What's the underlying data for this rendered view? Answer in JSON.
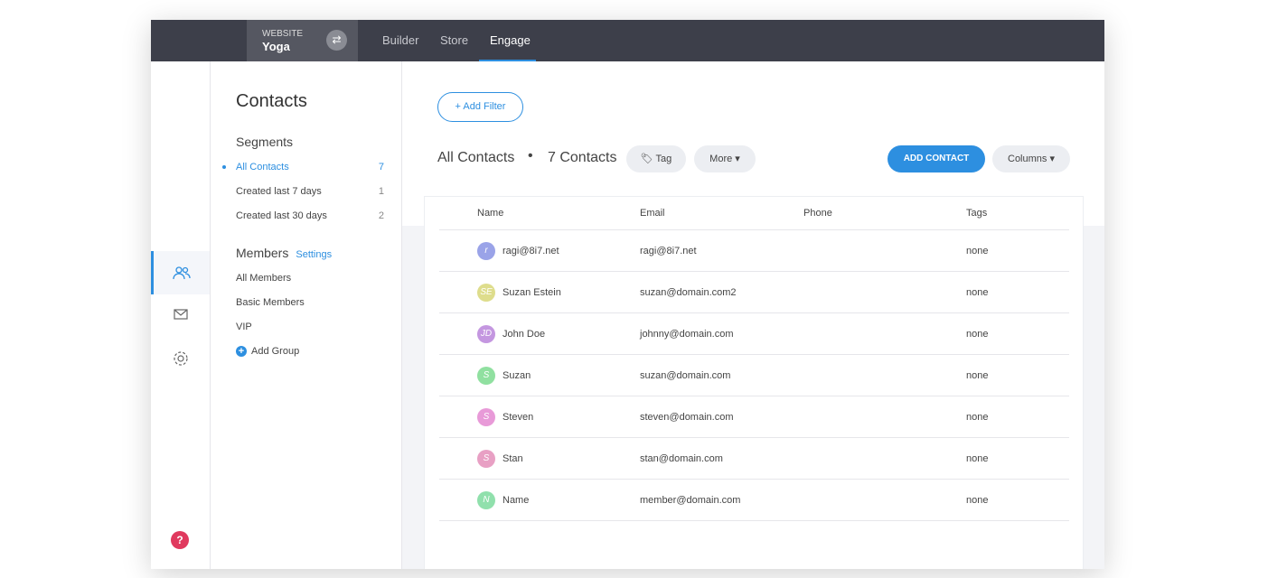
{
  "topbar": {
    "website_label": "WEBSITE",
    "website_name": "Yoga",
    "nav": [
      "Builder",
      "Store",
      "Engage"
    ],
    "active_nav": "Engage"
  },
  "sidebar": {
    "title": "Contacts",
    "segments_heading": "Segments",
    "segments": [
      {
        "label": "All Contacts",
        "count": "7",
        "active": true
      },
      {
        "label": "Created last 7 days",
        "count": "1"
      },
      {
        "label": "Created last 30 days",
        "count": "2"
      }
    ],
    "members_heading": "Members",
    "settings_link": "Settings",
    "members": [
      "All Members",
      "Basic Members",
      "VIP"
    ],
    "add_group": "Add Group"
  },
  "rail": {
    "icons": [
      "contacts-icon",
      "mail-icon",
      "gear-icon"
    ],
    "help": "?"
  },
  "main": {
    "add_filter": "Add Filter",
    "heading": "All Contacts",
    "count_label": "7 Contacts",
    "tag_button": "Tag",
    "more_button": "More",
    "add_contact": "ADD CONTACT",
    "columns_button": "Columns",
    "columns": [
      "Name",
      "Email",
      "Phone",
      "Tags"
    ],
    "rows": [
      {
        "initials": "r",
        "color": "#9aa3e8",
        "name": "ragi@8i7.net",
        "email": "ragi@8i7.net",
        "phone": "",
        "tags": "none"
      },
      {
        "initials": "SE",
        "color": "#dedd8c",
        "name": "Suzan Estein",
        "email": "suzan@domain.com2",
        "phone": "",
        "tags": "none"
      },
      {
        "initials": "JD",
        "color": "#c497e0",
        "name": "John Doe",
        "email": "johnny@domain.com",
        "phone": "",
        "tags": "none"
      },
      {
        "initials": "S",
        "color": "#90e0a0",
        "name": "Suzan",
        "email": "suzan@domain.com",
        "phone": "",
        "tags": "none"
      },
      {
        "initials": "S",
        "color": "#e89ad8",
        "name": "Steven",
        "email": "steven@domain.com",
        "phone": "",
        "tags": "none"
      },
      {
        "initials": "S",
        "color": "#e8a0c4",
        "name": "Stan",
        "email": "stan@domain.com",
        "phone": "",
        "tags": "none"
      },
      {
        "initials": "N",
        "color": "#90e0ac",
        "name": "Name",
        "email": "member@domain.com",
        "phone": "",
        "tags": "none"
      }
    ]
  },
  "colors": {
    "accent": "#2d8fe0",
    "topbar": "#3d3f4a",
    "help": "#e0395e"
  }
}
